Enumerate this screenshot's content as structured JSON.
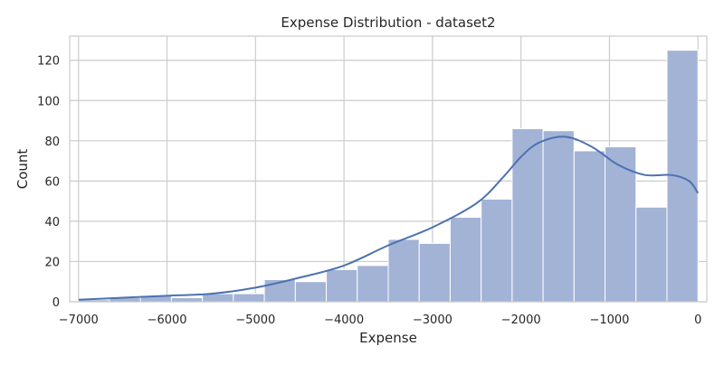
{
  "chart_data": {
    "type": "bar",
    "subtype": "histogram-with-kde",
    "title": "Expense Distribution - dataset2",
    "xlabel": "Expense",
    "ylabel": "Count",
    "xlim": [
      -7100,
      100
    ],
    "ylim": [
      0,
      132
    ],
    "xticks": [
      -7000,
      -6000,
      -5000,
      -4000,
      -3000,
      -2000,
      -1000,
      0
    ],
    "xtick_labels": [
      "−7000",
      "−6000",
      "−5000",
      "−4000",
      "−3000",
      "−2000",
      "−1000",
      "0"
    ],
    "yticks": [
      0,
      20,
      40,
      60,
      80,
      100,
      120
    ],
    "ytick_labels": [
      "0",
      "20",
      "40",
      "60",
      "80",
      "100",
      "120"
    ],
    "grid": true,
    "legend": false,
    "bins": [
      {
        "x0": -7000,
        "x1": -6650,
        "count": 1
      },
      {
        "x0": -6650,
        "x1": -6300,
        "count": 2
      },
      {
        "x0": -6300,
        "x1": -5950,
        "count": 3
      },
      {
        "x0": -5950,
        "x1": -5600,
        "count": 2
      },
      {
        "x0": -5600,
        "x1": -5250,
        "count": 4
      },
      {
        "x0": -5250,
        "x1": -4900,
        "count": 4
      },
      {
        "x0": -4900,
        "x1": -4550,
        "count": 11
      },
      {
        "x0": -4550,
        "x1": -4200,
        "count": 10
      },
      {
        "x0": -4200,
        "x1": -3850,
        "count": 16
      },
      {
        "x0": -3850,
        "x1": -3500,
        "count": 18
      },
      {
        "x0": -3500,
        "x1": -3150,
        "count": 31
      },
      {
        "x0": -3150,
        "x1": -2800,
        "count": 29
      },
      {
        "x0": -2800,
        "x1": -2450,
        "count": 42
      },
      {
        "x0": -2450,
        "x1": -2100,
        "count": 51
      },
      {
        "x0": -2100,
        "x1": -1750,
        "count": 86
      },
      {
        "x0": -1750,
        "x1": -1400,
        "count": 85
      },
      {
        "x0": -1400,
        "x1": -1050,
        "count": 75
      },
      {
        "x0": -1050,
        "x1": -700,
        "count": 77
      },
      {
        "x0": -700,
        "x1": -350,
        "count": 47
      },
      {
        "x0": -350,
        "x1": 0,
        "count": 125
      }
    ],
    "kde": {
      "x": [
        -7000,
        -6500,
        -6000,
        -5500,
        -5000,
        -4500,
        -4000,
        -3500,
        -3000,
        -2500,
        -2200,
        -2000,
        -1800,
        -1500,
        -1200,
        -900,
        -600,
        -300,
        -100,
        0
      ],
      "y": [
        1,
        2,
        3,
        4,
        7,
        12,
        18,
        28,
        37,
        49,
        62,
        72,
        79,
        82,
        77,
        68,
        63,
        63,
        60,
        54
      ]
    },
    "colors": {
      "bar_fill": "#a2b3d6",
      "bar_stroke": "#ffffff",
      "kde_line": "#4c72b0",
      "grid": "#cccccc",
      "axes_frame": "#cccccc",
      "background": "#ffffff"
    }
  }
}
